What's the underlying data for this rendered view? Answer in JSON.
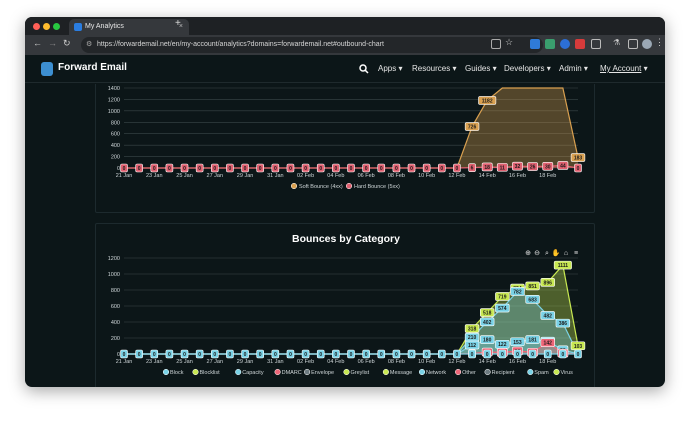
{
  "browser": {
    "tab_title": "My Analytics",
    "url": "https://forwardemail.net/en/my-account/analytics?domains=forwardemail.net#outbound-chart"
  },
  "app": {
    "brand": "Forward Email",
    "menu": [
      "Apps",
      "Resources",
      "Guides",
      "Developers",
      "Admin",
      "My Account"
    ]
  },
  "colors": {
    "soft": "#d9a050",
    "hard": "#e06070",
    "lime": "#c8e852",
    "cyan": "#7ad2e6",
    "red": "#ee6678"
  },
  "chart_data": [
    {
      "type": "area",
      "title": "",
      "x": [
        "21 Jan",
        "22 Jan",
        "23 Jan",
        "24 Jan",
        "25 Jan",
        "26 Jan",
        "27 Jan",
        "28 Jan",
        "29 Jan",
        "30 Jan",
        "31 Jan",
        "01 Feb",
        "02 Feb",
        "03 Feb",
        "04 Feb",
        "05 Feb",
        "06 Feb",
        "07 Feb",
        "08 Feb",
        "09 Feb",
        "10 Feb",
        "11 Feb",
        "12 Feb",
        "13 Feb",
        "14 Feb",
        "15 Feb",
        "16 Feb",
        "17 Feb",
        "18 Feb",
        "19 Feb",
        "20 Feb"
      ],
      "xticks": [
        "21 Jan",
        "23 Jan",
        "25 Jan",
        "27 Jan",
        "29 Jan",
        "31 Jan",
        "02 Feb",
        "04 Feb",
        "06 Feb",
        "08 Feb",
        "10 Feb",
        "12 Feb",
        "14 Feb",
        "16 Feb",
        "18 Feb"
      ],
      "yticks": [
        "0",
        "200",
        "400",
        "600",
        "800",
        "1000",
        "1200",
        "1400"
      ],
      "ylim": [
        0,
        1400
      ],
      "series": [
        {
          "name": "Soft Bounce (4xx)",
          "values": [
            0,
            0,
            0,
            0,
            0,
            0,
            0,
            0,
            0,
            0,
            0,
            0,
            0,
            0,
            0,
            0,
            0,
            0,
            0,
            0,
            0,
            0,
            0,
            726,
            1182,
            1400,
            1400,
            1400,
            1400,
            1400,
            183
          ],
          "labels": {
            "23": "726",
            "24": "1182",
            "30": "183"
          }
        },
        {
          "name": "Hard Bounce (5xx)",
          "values": [
            0,
            0,
            0,
            0,
            0,
            0,
            0,
            0,
            0,
            0,
            0,
            0,
            0,
            0,
            0,
            0,
            0,
            0,
            0,
            0,
            0,
            0,
            0,
            6,
            18,
            11,
            32,
            26,
            30,
            44,
            0
          ],
          "labels": "all"
        }
      ]
    },
    {
      "type": "area",
      "title": "Bounces by Category",
      "x": [
        "21 Jan",
        "22 Jan",
        "23 Jan",
        "24 Jan",
        "25 Jan",
        "26 Jan",
        "27 Jan",
        "28 Jan",
        "29 Jan",
        "30 Jan",
        "31 Jan",
        "01 Feb",
        "02 Feb",
        "03 Feb",
        "04 Feb",
        "05 Feb",
        "06 Feb",
        "07 Feb",
        "08 Feb",
        "09 Feb",
        "10 Feb",
        "11 Feb",
        "12 Feb",
        "13 Feb",
        "14 Feb",
        "15 Feb",
        "16 Feb",
        "17 Feb",
        "18 Feb",
        "19 Feb",
        "20 Feb"
      ],
      "xticks": [
        "21 Jan",
        "23 Jan",
        "25 Jan",
        "27 Jan",
        "29 Jan",
        "31 Jan",
        "02 Feb",
        "04 Feb",
        "06 Feb",
        "08 Feb",
        "10 Feb",
        "12 Feb",
        "14 Feb",
        "16 Feb",
        "18 Feb"
      ],
      "yticks": [
        "0",
        "200",
        "400",
        "600",
        "800",
        "1000",
        "1200"
      ],
      "ylim": [
        0,
        1200
      ],
      "legend": [
        "Block",
        "Blocklist",
        "Capacity",
        "DMARC",
        "Envelope",
        "Greylist",
        "Message",
        "Network",
        "Other",
        "Recipient",
        "Spam",
        "Virus"
      ],
      "series": [
        {
          "name": "Virus",
          "values": [
            0,
            0,
            0,
            0,
            0,
            0,
            0,
            0,
            0,
            0,
            0,
            0,
            0,
            0,
            0,
            0,
            0,
            0,
            0,
            0,
            0,
            0,
            0,
            318,
            518,
            719,
            824,
            851,
            896,
            1111,
            103
          ],
          "labels": "nonzero"
        },
        {
          "name": "Network",
          "values": [
            0,
            0,
            0,
            0,
            0,
            0,
            0,
            0,
            0,
            0,
            0,
            0,
            0,
            0,
            0,
            0,
            0,
            0,
            0,
            0,
            0,
            0,
            0,
            210,
            402,
            574,
            782,
            683,
            482,
            386,
            0
          ],
          "labels": "nonzero"
        },
        {
          "name": "Greylist",
          "values": [
            0,
            0,
            0,
            0,
            0,
            0,
            0,
            0,
            0,
            0,
            0,
            0,
            0,
            0,
            0,
            0,
            0,
            0,
            0,
            0,
            0,
            0,
            0,
            112,
            180,
            122,
            153,
            181,
            160,
            52,
            0
          ],
          "labels": "nonzero"
        },
        {
          "name": "Other",
          "values": [
            0,
            0,
            0,
            0,
            0,
            0,
            0,
            0,
            0,
            0,
            0,
            0,
            0,
            0,
            0,
            0,
            0,
            0,
            0,
            0,
            0,
            0,
            0,
            5,
            24,
            20,
            38,
            22,
            142,
            11,
            0
          ],
          "labels": "nonzero"
        },
        {
          "name": "Spam",
          "values": [
            0,
            0,
            0,
            0,
            0,
            0,
            0,
            0,
            0,
            0,
            0,
            0,
            0,
            0,
            0,
            0,
            0,
            0,
            0,
            0,
            0,
            0,
            0,
            0,
            0,
            0,
            0,
            0,
            0,
            0,
            0
          ],
          "labels": "all"
        }
      ]
    }
  ]
}
